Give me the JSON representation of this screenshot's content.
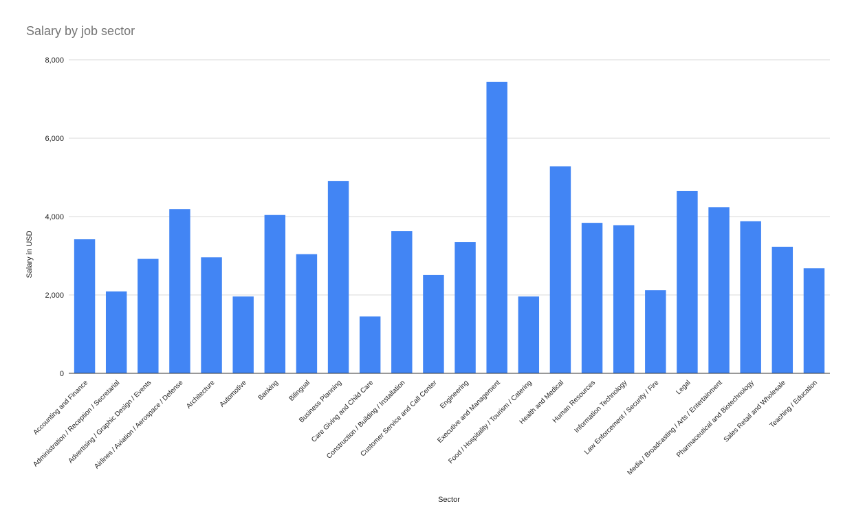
{
  "chart_data": {
    "type": "bar",
    "title": "Salary by job sector",
    "xlabel": "Sector",
    "ylabel": "Salary in USD",
    "ylim": [
      0,
      8000
    ],
    "yticks": [
      0,
      2000,
      4000,
      6000,
      8000
    ],
    "ytick_labels": [
      "0",
      "2,000",
      "4,000",
      "6,000",
      "8,000"
    ],
    "grid": true,
    "legend": "none",
    "bar_color": "#4285F4",
    "categories": [
      "Accounting and Finance",
      "Administration / Reception / Secretarial",
      "Advertising / Graphic Design / Events",
      "Airlines / Aviation / Aerospace / Defense",
      "Architecture",
      "Automotive",
      "Banking",
      "Bilingual",
      "Business Planning",
      "Care Giving and Child Care",
      "Construction / Building / Installation",
      "Customer Service and Call Center",
      "Engineering",
      "Executive and Management",
      "Food / Hospitality / Tourism / Catering",
      "Health and Medical",
      "Human Resources",
      "Information Technology",
      "Law Enforcement / Security / Fire",
      "Legal",
      "Media / Broadcasting / Arts / Entertainment",
      "Pharmaceutical and Biotechnology",
      "Sales Retail and Wholesale",
      "Teaching / Education"
    ],
    "values": [
      3420,
      2090,
      2920,
      4190,
      2960,
      1960,
      4040,
      3040,
      4910,
      1450,
      3630,
      2510,
      3350,
      7440,
      1960,
      5280,
      3840,
      3780,
      2120,
      4650,
      4240,
      3880,
      3230,
      2680
    ]
  }
}
